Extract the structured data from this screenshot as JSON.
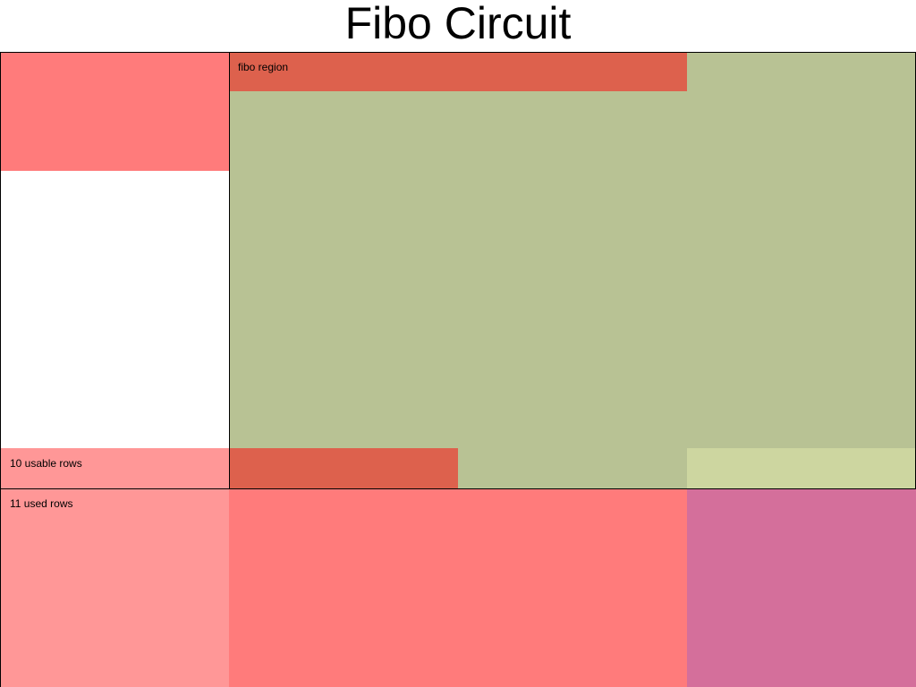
{
  "title": "Fibo Circuit",
  "labels": {
    "fibo_region": "fibo region",
    "usable_rows": "10 usable rows",
    "used_rows": "11 used rows"
  },
  "colors": {
    "red": "#ff7b7b",
    "dark_red": "#dd614d",
    "green": "#b8c294",
    "light_green": "#cdd6a0",
    "pink": "#ff9797",
    "magenta": "#d46f9b",
    "border": "#000000",
    "background": "#ffffff"
  }
}
